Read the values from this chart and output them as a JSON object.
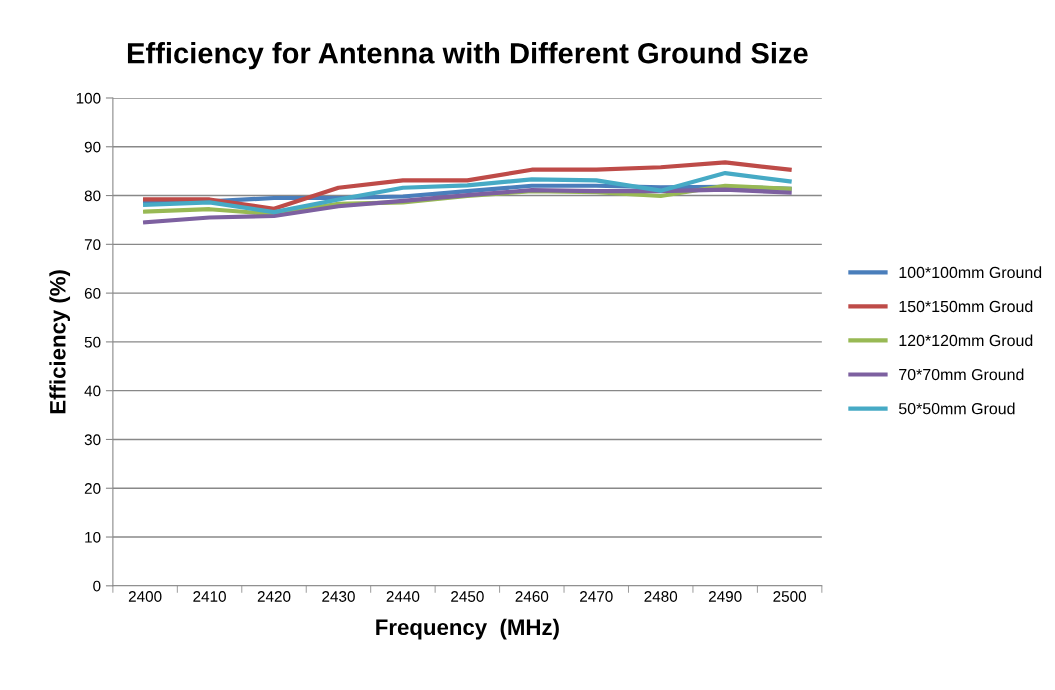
{
  "chart_data": {
    "type": "line",
    "title": "Efficiency for Antenna with Different Ground Size",
    "xlabel": "Frequency  (MHz)",
    "ylabel": "Efficiency (%)",
    "categories": [
      "2400",
      "2410",
      "2420",
      "2430",
      "2440",
      "2450",
      "2460",
      "2470",
      "2480",
      "2490",
      "2500"
    ],
    "series": [
      {
        "name": "100*100mm Ground",
        "color": "#4a7ebb",
        "values": [
          78.5,
          78.8,
          79.5,
          79.5,
          79.8,
          80.9,
          82,
          82,
          81.7,
          81.8,
          81.4
        ]
      },
      {
        "name": "150*150mm Groud",
        "color": "#be4b48",
        "values": [
          79.2,
          79.2,
          77.3,
          81.6,
          83.1,
          83.1,
          85.3,
          85.3,
          85.8,
          86.8,
          85.3
        ]
      },
      {
        "name": "120*120mm Groud",
        "color": "#98b954",
        "values": [
          76.7,
          77.2,
          76.2,
          78.3,
          78.6,
          79.9,
          80.9,
          80.7,
          79.9,
          82,
          81.4
        ]
      },
      {
        "name": "70*70mm Ground",
        "color": "#7d60a0",
        "values": [
          74.5,
          75.5,
          75.8,
          77.8,
          78.9,
          80.1,
          81.1,
          80.9,
          80.9,
          81.2,
          80.6
        ]
      },
      {
        "name": "50*50mm Groud",
        "color": "#46aac5",
        "values": [
          78.1,
          78.6,
          76.6,
          79.2,
          81.6,
          82.1,
          83.3,
          83.1,
          81.0,
          84.6,
          82.9
        ]
      }
    ],
    "ylim": [
      0,
      100
    ],
    "yticks": [
      0,
      10,
      20,
      30,
      40,
      50,
      60,
      70,
      80,
      90,
      100
    ],
    "grid": "y",
    "legend": "right",
    "marker": "none",
    "line_style": "solid"
  }
}
